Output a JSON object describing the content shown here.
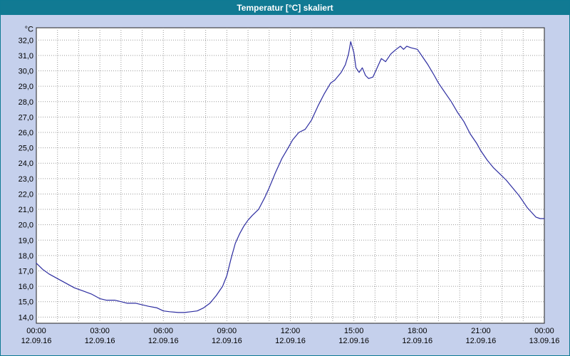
{
  "window": {
    "title": "Temperatur [°C] skaliert"
  },
  "colors": {
    "titlebar": "#117A93",
    "window_bg": "#C5D0EC",
    "plot_bg": "#FFFFFF",
    "plot_border": "#222222",
    "grid": "#9A9A9A",
    "line": "#2C2CA0",
    "tick_text": "#000000"
  },
  "chart_data": {
    "type": "line",
    "title": "Temperatur [°C] skaliert",
    "ylabel": "°C",
    "xlabel": "",
    "y_min": 13.6,
    "y_max": 32.8,
    "x_min": 0,
    "x_max": 24,
    "grid": {
      "style": "dotted",
      "x_step_hours": 1,
      "y_step_degc": 1
    },
    "legend_position": "none",
    "y_ticks": [
      {
        "v": 32,
        "label": "32,0"
      },
      {
        "v": 31,
        "label": "31,0"
      },
      {
        "v": 30,
        "label": "30,0"
      },
      {
        "v": 29,
        "label": "29,0"
      },
      {
        "v": 28,
        "label": "28,0"
      },
      {
        "v": 27,
        "label": "27,0"
      },
      {
        "v": 26,
        "label": "26,0"
      },
      {
        "v": 25,
        "label": "25,0"
      },
      {
        "v": 24,
        "label": "24,0"
      },
      {
        "v": 23,
        "label": "23,0"
      },
      {
        "v": 22,
        "label": "22,0"
      },
      {
        "v": 21,
        "label": "21,0"
      },
      {
        "v": 20,
        "label": "20,0"
      },
      {
        "v": 19,
        "label": "19,0"
      },
      {
        "v": 18,
        "label": "18,0"
      },
      {
        "v": 17,
        "label": "17,0"
      },
      {
        "v": 16,
        "label": "16,0"
      },
      {
        "v": 15,
        "label": "15,0"
      },
      {
        "v": 14,
        "label": "14,0"
      }
    ],
    "x_ticks": [
      {
        "h": 0,
        "time": "00:00",
        "date": "12.09.16"
      },
      {
        "h": 3,
        "time": "03:00",
        "date": "12.09.16"
      },
      {
        "h": 6,
        "time": "06:00",
        "date": "12.09.16"
      },
      {
        "h": 9,
        "time": "09:00",
        "date": "12.09.16"
      },
      {
        "h": 12,
        "time": "12:00",
        "date": "12.09.16"
      },
      {
        "h": 15,
        "time": "15:00",
        "date": "12.09.16"
      },
      {
        "h": 18,
        "time": "18:00",
        "date": "12.09.16"
      },
      {
        "h": 21,
        "time": "21:00",
        "date": "12.09.16"
      },
      {
        "h": 24,
        "time": "00:00",
        "date": "13.09.16"
      }
    ],
    "series": [
      {
        "name": "Temperatur [°C]",
        "color": "#2C2CA0",
        "points": [
          [
            0,
            17.5
          ],
          [
            0.3,
            17.1
          ],
          [
            0.6,
            16.8
          ],
          [
            1,
            16.5
          ],
          [
            1.4,
            16.2
          ],
          [
            1.8,
            15.9
          ],
          [
            2.2,
            15.7
          ],
          [
            2.6,
            15.5
          ],
          [
            3,
            15.2
          ],
          [
            3.3,
            15.1
          ],
          [
            3.7,
            15.1
          ],
          [
            4,
            15.0
          ],
          [
            4.3,
            14.9
          ],
          [
            4.7,
            14.9
          ],
          [
            5,
            14.8
          ],
          [
            5.3,
            14.7
          ],
          [
            5.7,
            14.6
          ],
          [
            6,
            14.4
          ],
          [
            6.3,
            14.35
          ],
          [
            6.7,
            14.3
          ],
          [
            7,
            14.3
          ],
          [
            7.3,
            14.35
          ],
          [
            7.6,
            14.4
          ],
          [
            7.9,
            14.6
          ],
          [
            8.2,
            14.9
          ],
          [
            8.5,
            15.4
          ],
          [
            8.8,
            16.0
          ],
          [
            9,
            16.7
          ],
          [
            9.2,
            17.8
          ],
          [
            9.4,
            18.8
          ],
          [
            9.6,
            19.4
          ],
          [
            9.8,
            19.9
          ],
          [
            10,
            20.3
          ],
          [
            10.2,
            20.6
          ],
          [
            10.5,
            21.0
          ],
          [
            10.8,
            21.8
          ],
          [
            11,
            22.4
          ],
          [
            11.3,
            23.4
          ],
          [
            11.6,
            24.3
          ],
          [
            11.9,
            25.0
          ],
          [
            12.1,
            25.5
          ],
          [
            12.4,
            26.0
          ],
          [
            12.7,
            26.2
          ],
          [
            13,
            26.8
          ],
          [
            13.3,
            27.7
          ],
          [
            13.6,
            28.5
          ],
          [
            13.9,
            29.2
          ],
          [
            14.1,
            29.4
          ],
          [
            14.4,
            29.9
          ],
          [
            14.6,
            30.4
          ],
          [
            14.75,
            31.1
          ],
          [
            14.85,
            31.9
          ],
          [
            15,
            31.2
          ],
          [
            15.1,
            30.2
          ],
          [
            15.25,
            29.9
          ],
          [
            15.4,
            30.2
          ],
          [
            15.55,
            29.7
          ],
          [
            15.7,
            29.5
          ],
          [
            15.9,
            29.6
          ],
          [
            16.1,
            30.2
          ],
          [
            16.3,
            30.8
          ],
          [
            16.5,
            30.6
          ],
          [
            16.75,
            31.1
          ],
          [
            17,
            31.4
          ],
          [
            17.2,
            31.6
          ],
          [
            17.35,
            31.4
          ],
          [
            17.5,
            31.6
          ],
          [
            17.7,
            31.5
          ],
          [
            18,
            31.4
          ],
          [
            18.2,
            31.0
          ],
          [
            18.5,
            30.4
          ],
          [
            18.8,
            29.7
          ],
          [
            19,
            29.2
          ],
          [
            19.3,
            28.6
          ],
          [
            19.6,
            28.0
          ],
          [
            19.9,
            27.3
          ],
          [
            20.2,
            26.7
          ],
          [
            20.5,
            25.9
          ],
          [
            20.8,
            25.3
          ],
          [
            21,
            24.8
          ],
          [
            21.3,
            24.2
          ],
          [
            21.6,
            23.7
          ],
          [
            21.9,
            23.3
          ],
          [
            22.2,
            22.9
          ],
          [
            22.5,
            22.4
          ],
          [
            22.8,
            21.9
          ],
          [
            23,
            21.5
          ],
          [
            23.2,
            21.1
          ],
          [
            23.4,
            20.8
          ],
          [
            23.6,
            20.5
          ],
          [
            23.8,
            20.4
          ],
          [
            24,
            20.4
          ]
        ]
      }
    ]
  }
}
